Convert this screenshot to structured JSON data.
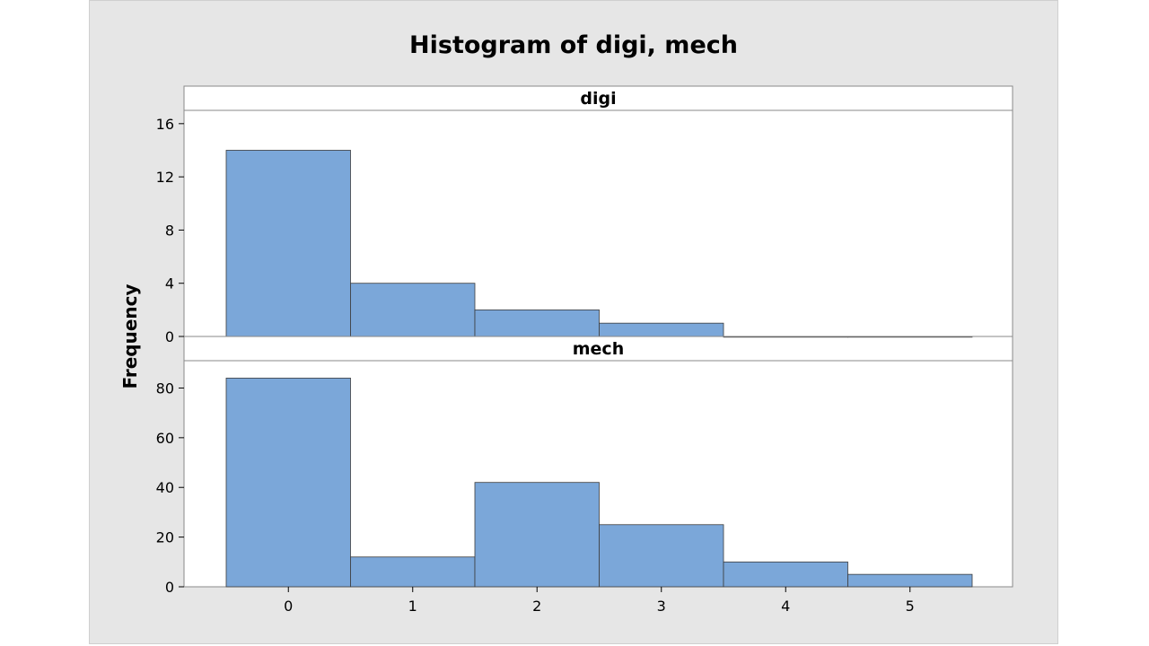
{
  "chart_data": {
    "type": "bar",
    "title": "Histogram of digi, mech",
    "ylabel": "Frequency",
    "xlabel": "",
    "x_ticks": [
      "0",
      "1",
      "2",
      "3",
      "4",
      "5"
    ],
    "categories": [
      0,
      1,
      2,
      3,
      4,
      5
    ],
    "bar_color": "#7ba7d9",
    "panels": [
      {
        "name": "digi",
        "values": [
          14,
          4,
          2,
          1,
          0,
          0
        ],
        "ylim": [
          0,
          17
        ],
        "y_ticks": [
          "0",
          "4",
          "8",
          "12",
          "16"
        ]
      },
      {
        "name": "mech",
        "values": [
          84,
          12,
          42,
          25,
          10,
          5
        ],
        "ylim": [
          0,
          91
        ],
        "y_ticks": [
          "0",
          "20",
          "40",
          "60",
          "80"
        ]
      }
    ],
    "grid": false,
    "legend": "none"
  }
}
